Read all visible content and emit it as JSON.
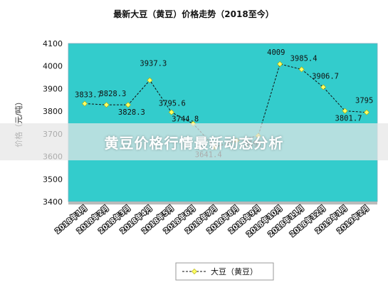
{
  "overlay_banner": "黄豆价格行情最新动态分析",
  "chart_data": {
    "type": "line",
    "title": "最新大豆（黄豆）价格走势（2018至今）",
    "ylabel": "价格（元/吨）",
    "xlabel": "",
    "ylim": [
      3400,
      4100
    ],
    "y_ticks": [
      3400,
      3500,
      3600,
      3700,
      3800,
      3900,
      4000,
      4100
    ],
    "grid": false,
    "legend_position": "bottom",
    "plot_background": "#33CCCC",
    "line_color": "#111111",
    "marker_color": "#FFFF66",
    "categories": [
      "2018年1月",
      "2018年2月",
      "2018年3月",
      "2018年4月",
      "2018年5月",
      "2018年6月",
      "2018年7月",
      "2018年8月",
      "2018年9月",
      "2018年10月",
      "2018年11月",
      "2018年12月",
      "2019年1月",
      "2019年2月"
    ],
    "series": [
      {
        "name": "大豆（黄豆）",
        "values": [
          3833.7,
          3828.3,
          3828.3,
          3937.3,
          3795.6,
          3744.8,
          3641.4,
          3670,
          3691,
          4009,
          3985.4,
          3906.7,
          3801.7,
          3795
        ],
        "data_labels": [
          "3833.7",
          "3828.3",
          "3828.3",
          "3937.3",
          "3795.6",
          "3744.8",
          "3641.4",
          "",
          "3691",
          "4009",
          "3985.4",
          "3906.7",
          "3801.7",
          "3795"
        ]
      }
    ]
  }
}
